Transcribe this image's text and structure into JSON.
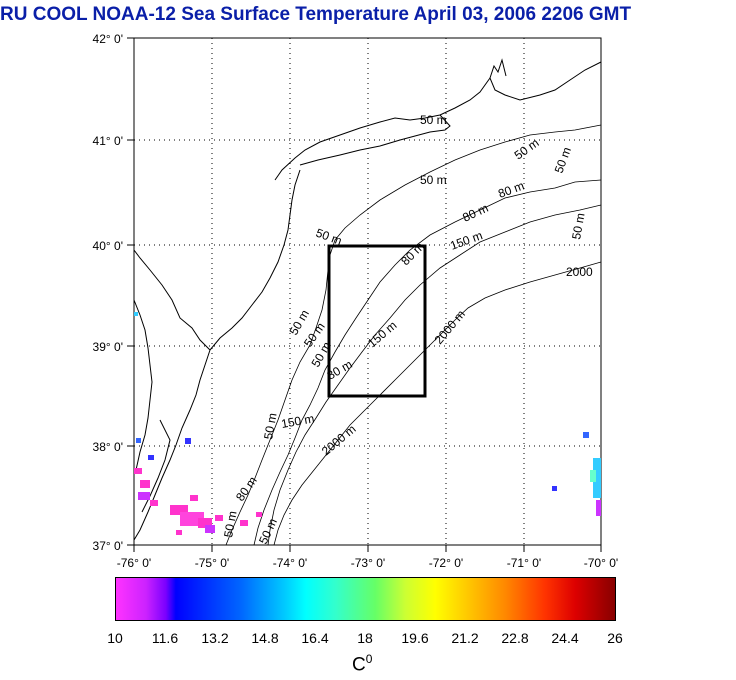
{
  "title": "RU COOL  NOAA-12 Sea Surface Temperature April 03, 2006 2206 GMT",
  "y_ticks": [
    "42° 0'",
    "41° 0'",
    "40° 0'",
    "39° 0'",
    "38° 0'",
    "37° 0'"
  ],
  "x_ticks": [
    "-76° 0'",
    "-75° 0'",
    "-74° 0'",
    "-73° 0'",
    "-72° 0'",
    "-71° 0'",
    "-70° 0'"
  ],
  "contour_labels": [
    "50 m",
    "50 m",
    "50 m",
    "50 m",
    "80 m",
    "80 m",
    "150 m",
    "2000",
    "50 m",
    "80 m",
    "150 m",
    "2000 m",
    "50 m",
    "50 m",
    "80 m",
    "150 m",
    "2000 m",
    "50 m",
    "80 m",
    "50 m",
    "50 m",
    "50 m",
    "50 m"
  ],
  "colorbar": {
    "ticks": [
      "10",
      "11.6",
      "13.2",
      "14.8",
      "16.4",
      "18",
      "19.6",
      "21.2",
      "22.8",
      "24.4",
      "26"
    ],
    "unit": "C",
    "unit_sup": "0",
    "min": 10,
    "max": 26
  }
}
